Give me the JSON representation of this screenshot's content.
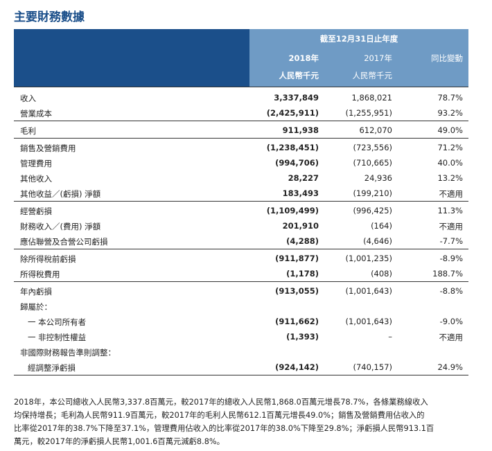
{
  "title": "主要財務數據",
  "header": {
    "period": "截至12月31日止年度",
    "columns": [
      "2018年",
      "2017年",
      "同比變動"
    ],
    "units": [
      "人民幣千元",
      "人民幣千元"
    ]
  },
  "table": {
    "groups": [
      [
        [
          "收入",
          "3,337,849",
          "1,868,021",
          "78.7%"
        ],
        [
          "營業成本",
          "(2,425,911)",
          "(1,255,951)",
          "93.2%"
        ]
      ],
      [
        [
          "毛利",
          "911,938",
          "612,070",
          "49.0%"
        ]
      ],
      [
        [
          "銷售及營銷費用",
          "(1,238,451)",
          "(723,556)",
          "71.2%"
        ],
        [
          "管理費用",
          "(994,706)",
          "(710,665)",
          "40.0%"
        ],
        [
          "其他收入",
          "28,227",
          "24,936",
          "13.2%"
        ],
        [
          "其他收益／(虧損) 淨額",
          "183,493",
          "(199,210)",
          "不適用"
        ]
      ],
      [
        [
          "經營虧損",
          "(1,109,499)",
          "(996,425)",
          "11.3%"
        ],
        [
          "財務收入／(費用) 淨額",
          "201,910",
          "(164)",
          "不適用"
        ],
        [
          "應佔聯營及合營公司虧損",
          "(4,288)",
          "(4,646)",
          "-7.7%"
        ]
      ],
      [
        [
          "除所得稅前虧損",
          "(911,877)",
          "(1,001,235)",
          "-8.9%"
        ],
        [
          "所得稅費用",
          "(1,178)",
          "(408)",
          "188.7%"
        ]
      ],
      [
        [
          "年內虧損",
          "(913,055)",
          "(1,001,643)",
          "-8.8%"
        ],
        [
          "歸屬於：",
          null,
          null,
          null
        ],
        [
          "一 本公司所有者",
          "(911,662)",
          "(1,001,643)",
          "-9.0%"
        ],
        [
          "一 非控制性權益",
          "(1,393)",
          "–",
          "不適用"
        ],
        [
          "非國際財務報告準則調整：",
          null,
          null,
          null
        ],
        [
          "經調整淨虧損",
          "(924,142)",
          "(740,157)",
          "24.9%"
        ]
      ]
    ]
  },
  "paragraph": [
    "2018年，本公司總收入人民幣3,337.8百萬元，較2017年的總收入人民幣1,868.0百萬元增長78.7%，各條業務線收入",
    "均保持增長；毛利為人民幣911.9百萬元，較2017年的毛利人民幣612.1百萬元增長49.0%；銷售及營銷費用佔收入的",
    "比率從2017年的38.7%下降至37.1%，管理費用佔收入的比率從2017年的38.0%下降至29.8%；淨虧損人民幣913.1百",
    "萬元，較2017年的淨虧損人民幣1,001.6百萬元減虧8.8%。"
  ]
}
